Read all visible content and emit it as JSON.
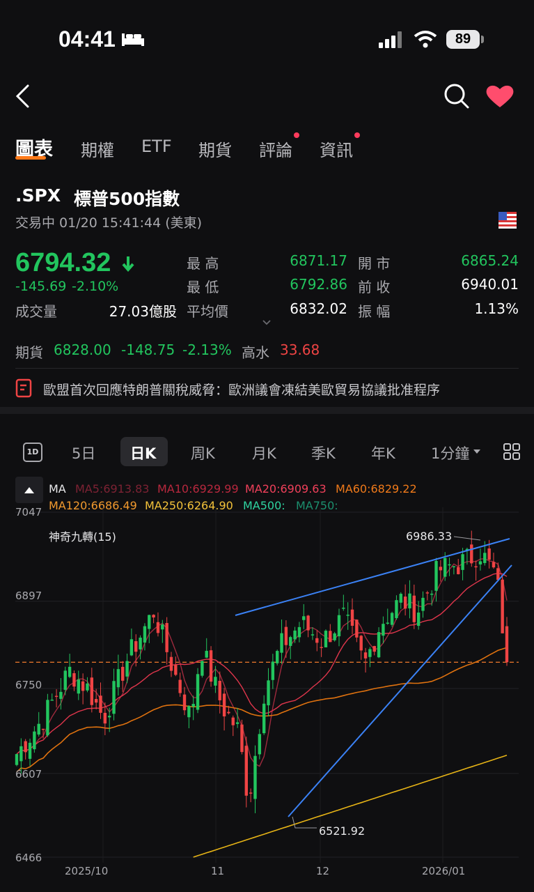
{
  "status_bar": {
    "time": "04:41",
    "battery": "89"
  },
  "tabs": [
    {
      "label": "圖表",
      "active": true
    },
    {
      "label": "期權"
    },
    {
      "label": "ETF"
    },
    {
      "label": "期貨"
    },
    {
      "label": "評論",
      "badge": true
    },
    {
      "label": "資訊",
      "badge": true
    }
  ],
  "quote": {
    "symbol": ".SPX",
    "name": "標普500指數",
    "status": "交易中 01/20 15:41:44 (美東)",
    "price": "6794.32",
    "change": "-145.69",
    "change_pct": "-2.10%",
    "volume_label": "成交量",
    "volume": "27.03億股",
    "stats": {
      "high_label": "最 高",
      "high": "6871.17",
      "open_label": "開 市",
      "open": "6865.24",
      "low_label": "最 低",
      "low": "6792.86",
      "prev_close_label": "前 收",
      "prev_close": "6940.01",
      "avg_label": "平均價",
      "avg": "6832.02",
      "amplitude_label": "振 幅",
      "amplitude": "1.13%"
    }
  },
  "futures": {
    "label": "期貨",
    "price": "6828.00",
    "change": "-148.75",
    "change_pct": "-2.13%",
    "premium_label": "高水",
    "premium": "33.68"
  },
  "news": {
    "headline": "歐盟首次回應特朗普關稅威脅：歐洲議會凍結美歐貿易協議批准程序"
  },
  "kline_tabs": {
    "icon_label": "1D",
    "items": [
      "5日",
      "日K",
      "周K",
      "月K",
      "季K",
      "年K",
      "1分鐘"
    ],
    "active": "日K"
  },
  "ma": {
    "label": "MA",
    "ma5": "MA5:6913.83",
    "ma10": "MA10:6929.99",
    "ma20": "MA20:6909.63",
    "ma60": "MA60:6829.22",
    "ma120": "MA120:6686.49",
    "ma250": "MA250:6264.90",
    "ma500": "MA500:",
    "ma750": "MA750:"
  },
  "indicator_label": "神奇九轉(15)",
  "chart_data": {
    "type": "candlestick",
    "y_ticks": [
      "7047",
      "6897",
      "6750",
      "6607",
      "6466"
    ],
    "x_ticks": [
      "2025/10",
      "11",
      "12",
      "2026/01"
    ],
    "high_marker": "6986.33",
    "low_marker": "6521.92",
    "current_price_line": 6794.32,
    "colors": {
      "up": "#22c55e",
      "down": "#ef4444",
      "ma5": "#9f2a3d",
      "ma20": "#e0364c",
      "ma60": "#e0720f",
      "ma250": "#e7b416",
      "trend": "#3b82f6"
    }
  }
}
